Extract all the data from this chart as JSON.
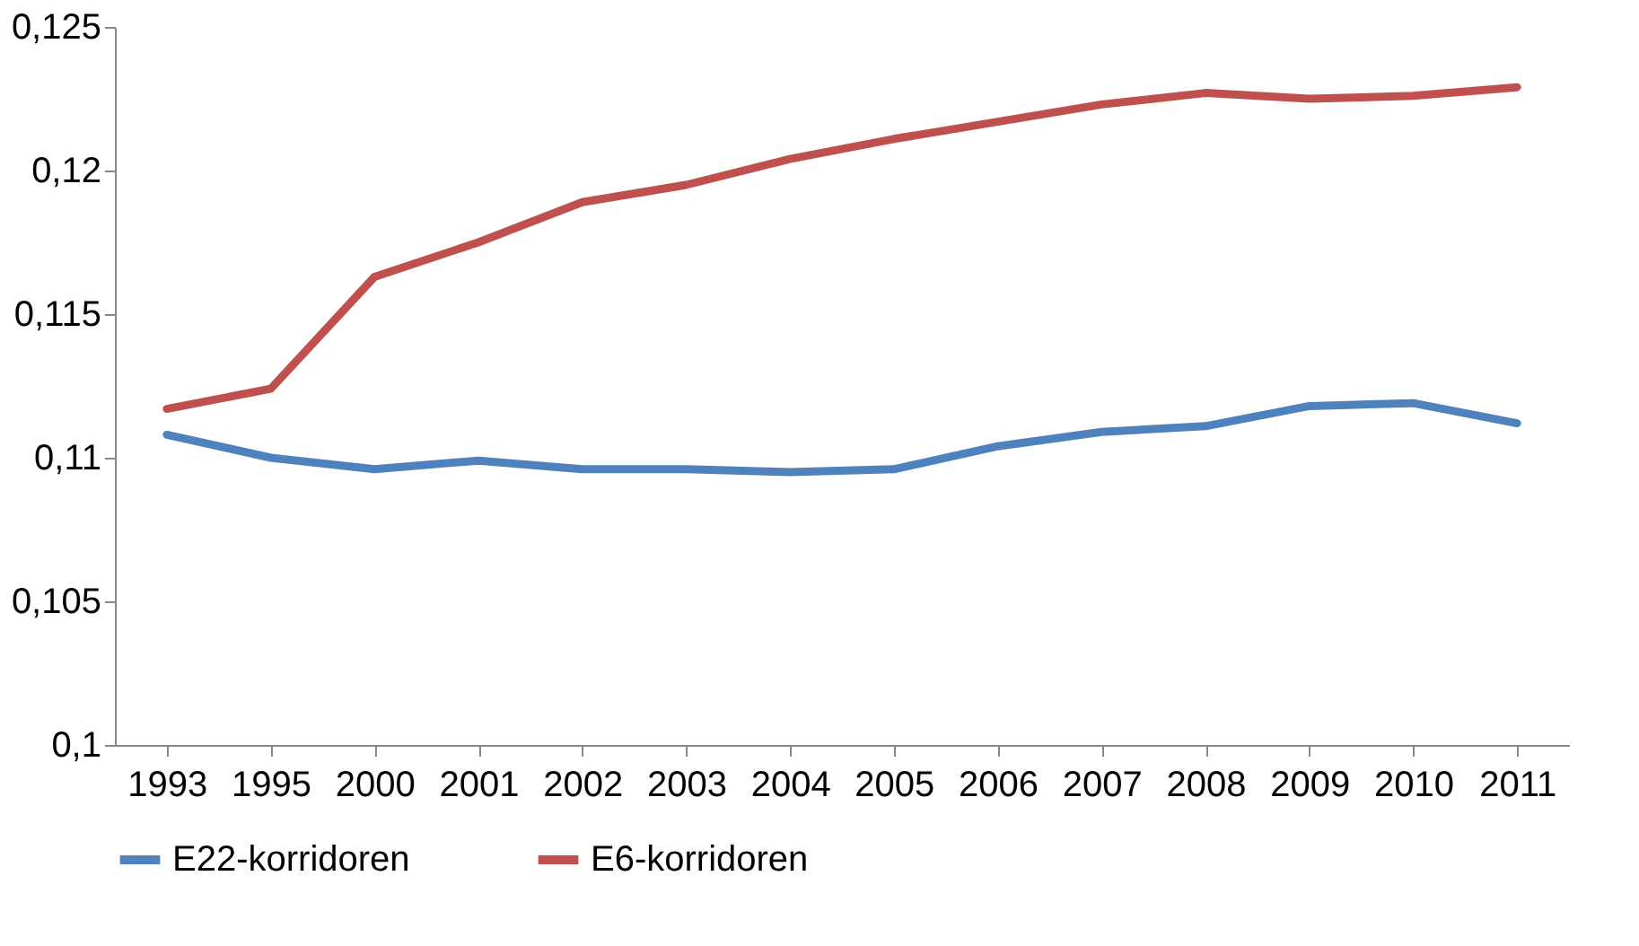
{
  "chart_data": {
    "type": "line",
    "categories": [
      "1993",
      "1995",
      "2000",
      "2001",
      "2002",
      "2003",
      "2004",
      "2005",
      "2006",
      "2007",
      "2008",
      "2009",
      "2010",
      "2011"
    ],
    "series": [
      {
        "name": "E22-korridoren",
        "color": "#4f81bd",
        "values": [
          0.1108,
          0.11,
          0.1096,
          0.1099,
          0.1096,
          0.1096,
          0.1095,
          0.1096,
          0.1104,
          0.1109,
          0.1111,
          0.1118,
          0.1119,
          0.1112
        ]
      },
      {
        "name": "E6-korridoren",
        "color": "#c0504d",
        "values": [
          0.1117,
          0.1124,
          0.1163,
          0.1175,
          0.1189,
          0.1195,
          0.1204,
          0.1211,
          0.1217,
          0.1223,
          0.1227,
          0.1225,
          0.1226,
          0.1229
        ]
      }
    ],
    "ylim": [
      0.1,
      0.125
    ],
    "yticks": [
      {
        "value": 0.1,
        "label": "0,1"
      },
      {
        "value": 0.105,
        "label": "0,105"
      },
      {
        "value": 0.11,
        "label": "0,11"
      },
      {
        "value": 0.115,
        "label": "0,115"
      },
      {
        "value": 0.12,
        "label": "0,12"
      },
      {
        "value": 0.125,
        "label": "0,125"
      }
    ],
    "grid": false,
    "legend": "bottom",
    "marker": "none",
    "line_style": "solid"
  }
}
